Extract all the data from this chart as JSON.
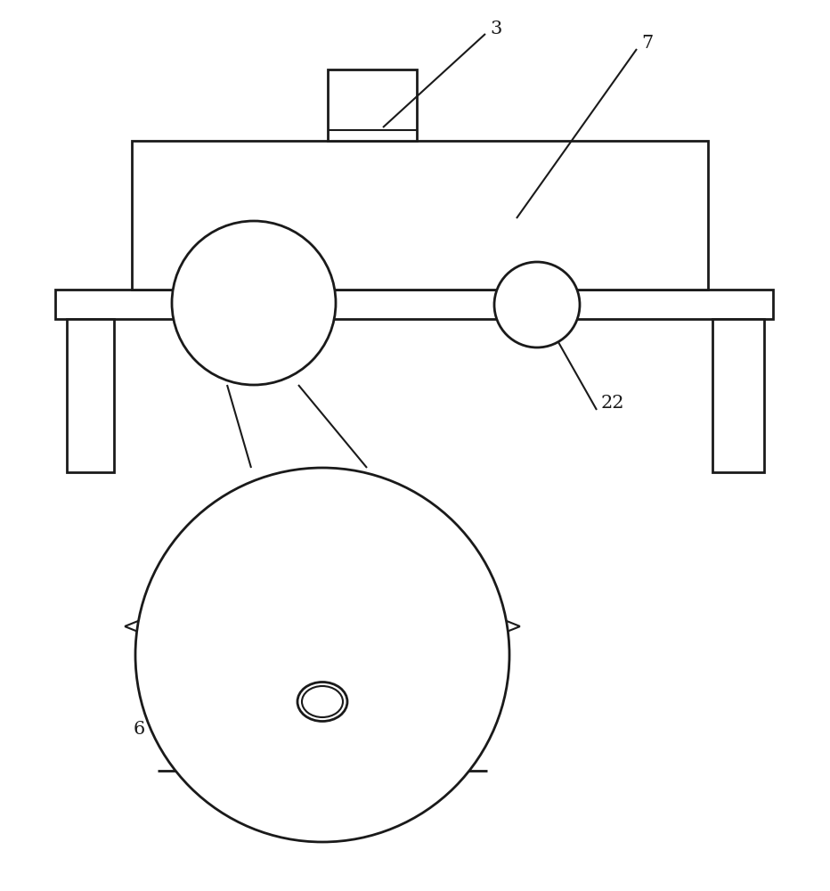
{
  "bg_color": "#ffffff",
  "line_color": "#1a1a1a",
  "lw": 1.5,
  "lw_thick": 2.0
}
